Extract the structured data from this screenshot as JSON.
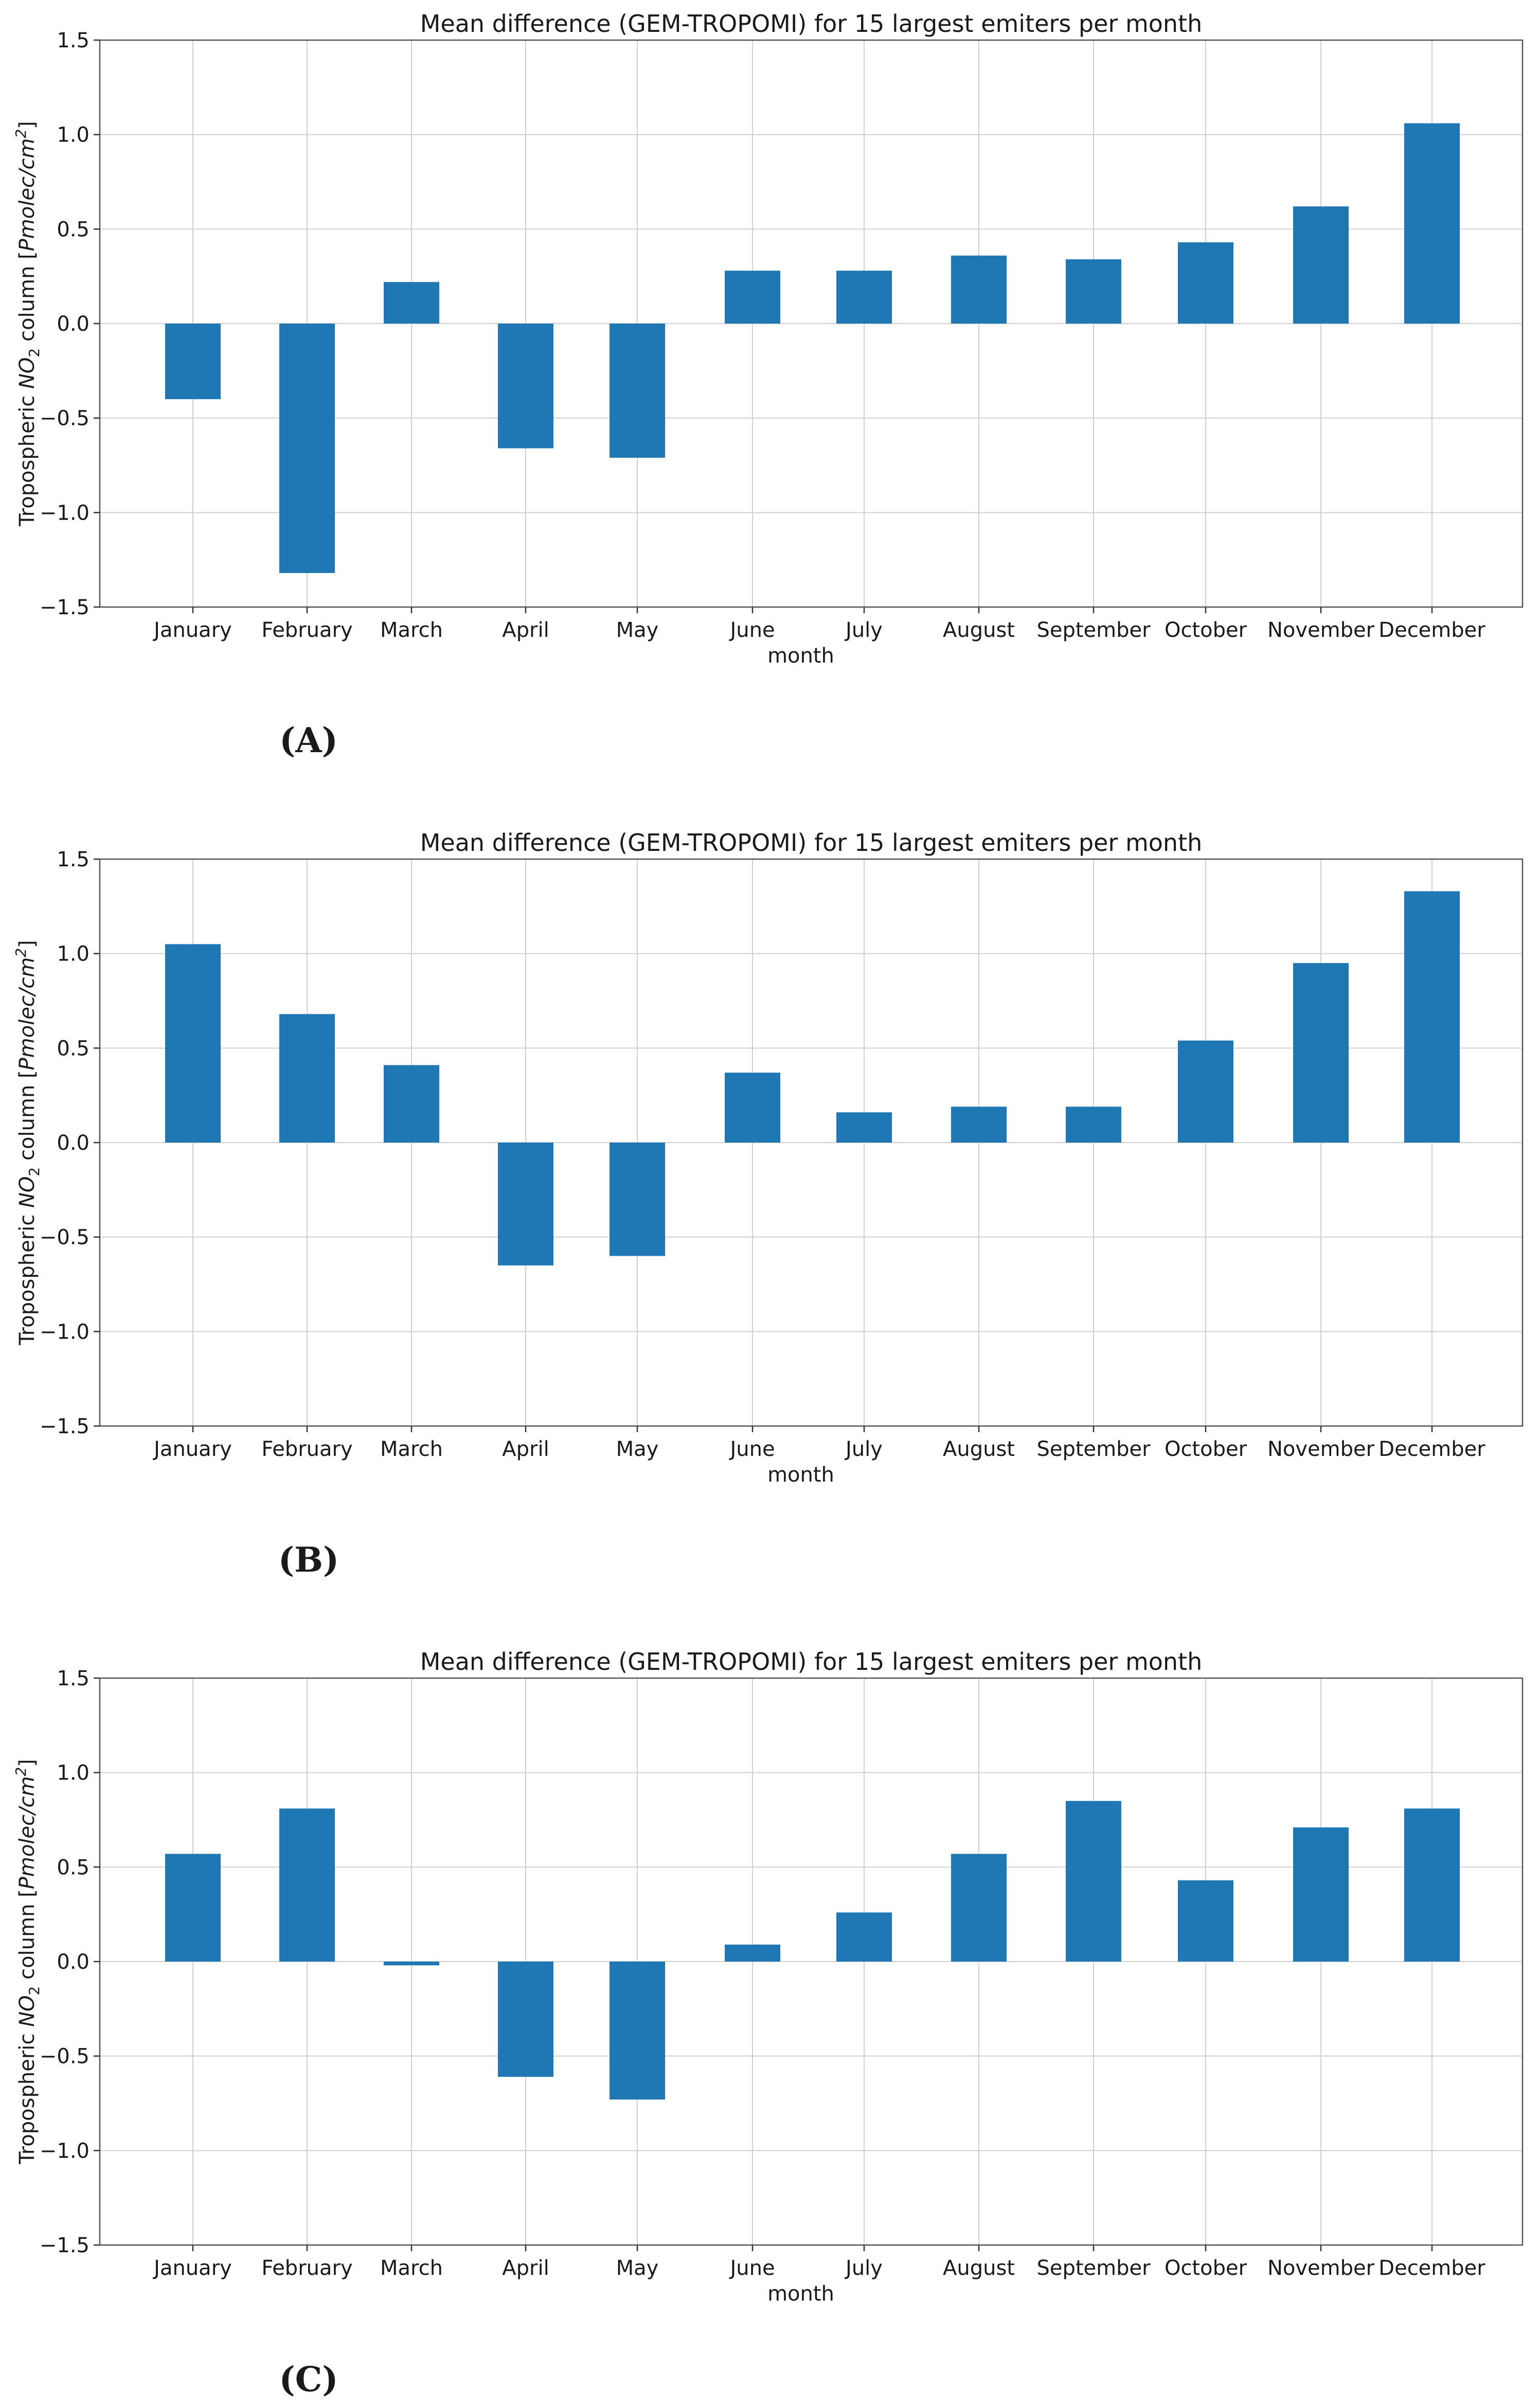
{
  "chart_data": [
    {
      "type": "bar",
      "panel": "(A)",
      "title": "Mean difference (GEM-TROPOMI) for 15 largest emiters per month",
      "xlabel": "month",
      "ylabel_parts": {
        "prefix": "Tropospheric ",
        "species": "NO",
        "subscript": "2",
        "middle": " column [",
        "unit": "Pmolec/cm",
        "superscript": "2",
        "suffix": "]"
      },
      "ylim": [
        -1.5,
        1.5
      ],
      "yticks": [
        -1.5,
        -1.0,
        -0.5,
        0.0,
        0.5,
        1.0,
        1.5
      ],
      "ytick_labels": [
        "−1.5",
        "−1.0",
        "−0.5",
        "0.0",
        "0.5",
        "1.0",
        "1.5"
      ],
      "grid": true,
      "color": "#1f77b4",
      "categories": [
        "January",
        "February",
        "March",
        "April",
        "May",
        "June",
        "July",
        "August",
        "September",
        "October",
        "November",
        "December"
      ],
      "values": [
        -0.4,
        -1.32,
        0.22,
        -0.66,
        -0.71,
        0.28,
        0.28,
        0.36,
        0.34,
        0.43,
        0.62,
        1.06
      ]
    },
    {
      "type": "bar",
      "panel": "(B)",
      "title": "Mean difference (GEM-TROPOMI) for 15 largest emiters per month",
      "xlabel": "month",
      "ylabel_parts": {
        "prefix": "Tropospheric ",
        "species": "NO",
        "subscript": "2",
        "middle": " column [",
        "unit": "Pmolec/cm",
        "superscript": "2",
        "suffix": "]"
      },
      "ylim": [
        -1.5,
        1.5
      ],
      "yticks": [
        -1.5,
        -1.0,
        -0.5,
        0.0,
        0.5,
        1.0,
        1.5
      ],
      "ytick_labels": [
        "−1.5",
        "−1.0",
        "−0.5",
        "0.0",
        "0.5",
        "1.0",
        "1.5"
      ],
      "grid": true,
      "color": "#1f77b4",
      "categories": [
        "January",
        "February",
        "March",
        "April",
        "May",
        "June",
        "July",
        "August",
        "September",
        "October",
        "November",
        "December"
      ],
      "values": [
        1.05,
        0.68,
        0.41,
        -0.65,
        -0.6,
        0.37,
        0.16,
        0.19,
        0.19,
        0.54,
        0.95,
        1.33
      ]
    },
    {
      "type": "bar",
      "panel": "(C)",
      "title": "Mean difference (GEM-TROPOMI) for 15 largest emiters per month",
      "xlabel": "month",
      "ylabel_parts": {
        "prefix": "Tropospheric ",
        "species": "NO",
        "subscript": "2",
        "middle": " column [",
        "unit": "Pmolec/cm",
        "superscript": "2",
        "suffix": "]"
      },
      "ylim": [
        -1.5,
        1.5
      ],
      "yticks": [
        -1.5,
        -1.0,
        -0.5,
        0.0,
        0.5,
        1.0,
        1.5
      ],
      "ytick_labels": [
        "−1.5",
        "−1.0",
        "−0.5",
        "0.0",
        "0.5",
        "1.0",
        "1.5"
      ],
      "grid": true,
      "color": "#1f77b4",
      "categories": [
        "January",
        "February",
        "March",
        "April",
        "May",
        "June",
        "July",
        "August",
        "September",
        "October",
        "November",
        "December"
      ],
      "values": [
        0.57,
        0.81,
        -0.02,
        -0.61,
        -0.73,
        0.09,
        0.26,
        0.57,
        0.85,
        0.43,
        0.71,
        0.81
      ]
    }
  ]
}
